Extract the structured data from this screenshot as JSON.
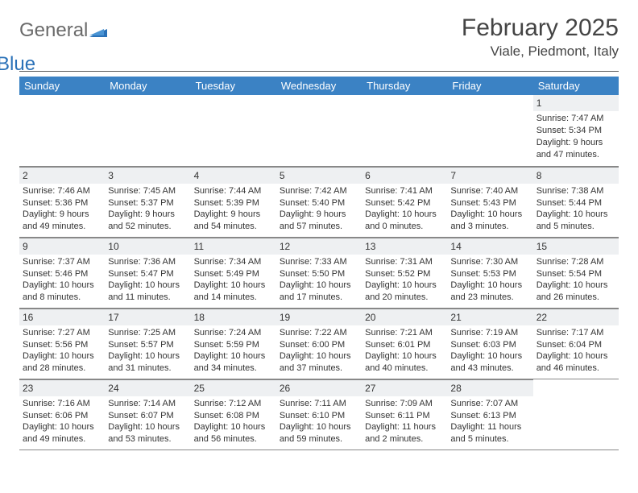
{
  "brand": {
    "part1": "General",
    "part2": "Blue"
  },
  "title": {
    "month_year": "February 2025",
    "location": "Viale, Piedmont, Italy"
  },
  "colors": {
    "header_bg": "#3b82c4",
    "header_text": "#ffffff",
    "daynum_bg": "#eef0f2",
    "border": "#888888",
    "logo_gray": "#6a6a6a",
    "logo_blue": "#2a71b8"
  },
  "weekdays": [
    "Sunday",
    "Monday",
    "Tuesday",
    "Wednesday",
    "Thursday",
    "Friday",
    "Saturday"
  ],
  "weeks": [
    [
      null,
      null,
      null,
      null,
      null,
      null,
      {
        "n": "1",
        "sunrise": "7:47 AM",
        "sunset": "5:34 PM",
        "daylight": "9 hours and 47 minutes."
      }
    ],
    [
      {
        "n": "2",
        "sunrise": "7:46 AM",
        "sunset": "5:36 PM",
        "daylight": "9 hours and 49 minutes."
      },
      {
        "n": "3",
        "sunrise": "7:45 AM",
        "sunset": "5:37 PM",
        "daylight": "9 hours and 52 minutes."
      },
      {
        "n": "4",
        "sunrise": "7:44 AM",
        "sunset": "5:39 PM",
        "daylight": "9 hours and 54 minutes."
      },
      {
        "n": "5",
        "sunrise": "7:42 AM",
        "sunset": "5:40 PM",
        "daylight": "9 hours and 57 minutes."
      },
      {
        "n": "6",
        "sunrise": "7:41 AM",
        "sunset": "5:42 PM",
        "daylight": "10 hours and 0 minutes."
      },
      {
        "n": "7",
        "sunrise": "7:40 AM",
        "sunset": "5:43 PM",
        "daylight": "10 hours and 3 minutes."
      },
      {
        "n": "8",
        "sunrise": "7:38 AM",
        "sunset": "5:44 PM",
        "daylight": "10 hours and 5 minutes."
      }
    ],
    [
      {
        "n": "9",
        "sunrise": "7:37 AM",
        "sunset": "5:46 PM",
        "daylight": "10 hours and 8 minutes."
      },
      {
        "n": "10",
        "sunrise": "7:36 AM",
        "sunset": "5:47 PM",
        "daylight": "10 hours and 11 minutes."
      },
      {
        "n": "11",
        "sunrise": "7:34 AM",
        "sunset": "5:49 PM",
        "daylight": "10 hours and 14 minutes."
      },
      {
        "n": "12",
        "sunrise": "7:33 AM",
        "sunset": "5:50 PM",
        "daylight": "10 hours and 17 minutes."
      },
      {
        "n": "13",
        "sunrise": "7:31 AM",
        "sunset": "5:52 PM",
        "daylight": "10 hours and 20 minutes."
      },
      {
        "n": "14",
        "sunrise": "7:30 AM",
        "sunset": "5:53 PM",
        "daylight": "10 hours and 23 minutes."
      },
      {
        "n": "15",
        "sunrise": "7:28 AM",
        "sunset": "5:54 PM",
        "daylight": "10 hours and 26 minutes."
      }
    ],
    [
      {
        "n": "16",
        "sunrise": "7:27 AM",
        "sunset": "5:56 PM",
        "daylight": "10 hours and 28 minutes."
      },
      {
        "n": "17",
        "sunrise": "7:25 AM",
        "sunset": "5:57 PM",
        "daylight": "10 hours and 31 minutes."
      },
      {
        "n": "18",
        "sunrise": "7:24 AM",
        "sunset": "5:59 PM",
        "daylight": "10 hours and 34 minutes."
      },
      {
        "n": "19",
        "sunrise": "7:22 AM",
        "sunset": "6:00 PM",
        "daylight": "10 hours and 37 minutes."
      },
      {
        "n": "20",
        "sunrise": "7:21 AM",
        "sunset": "6:01 PM",
        "daylight": "10 hours and 40 minutes."
      },
      {
        "n": "21",
        "sunrise": "7:19 AM",
        "sunset": "6:03 PM",
        "daylight": "10 hours and 43 minutes."
      },
      {
        "n": "22",
        "sunrise": "7:17 AM",
        "sunset": "6:04 PM",
        "daylight": "10 hours and 46 minutes."
      }
    ],
    [
      {
        "n": "23",
        "sunrise": "7:16 AM",
        "sunset": "6:06 PM",
        "daylight": "10 hours and 49 minutes."
      },
      {
        "n": "24",
        "sunrise": "7:14 AM",
        "sunset": "6:07 PM",
        "daylight": "10 hours and 53 minutes."
      },
      {
        "n": "25",
        "sunrise": "7:12 AM",
        "sunset": "6:08 PM",
        "daylight": "10 hours and 56 minutes."
      },
      {
        "n": "26",
        "sunrise": "7:11 AM",
        "sunset": "6:10 PM",
        "daylight": "10 hours and 59 minutes."
      },
      {
        "n": "27",
        "sunrise": "7:09 AM",
        "sunset": "6:11 PM",
        "daylight": "11 hours and 2 minutes."
      },
      {
        "n": "28",
        "sunrise": "7:07 AM",
        "sunset": "6:13 PM",
        "daylight": "11 hours and 5 minutes."
      },
      null
    ]
  ],
  "labels": {
    "sunrise": "Sunrise:",
    "sunset": "Sunset:",
    "daylight": "Daylight:"
  }
}
